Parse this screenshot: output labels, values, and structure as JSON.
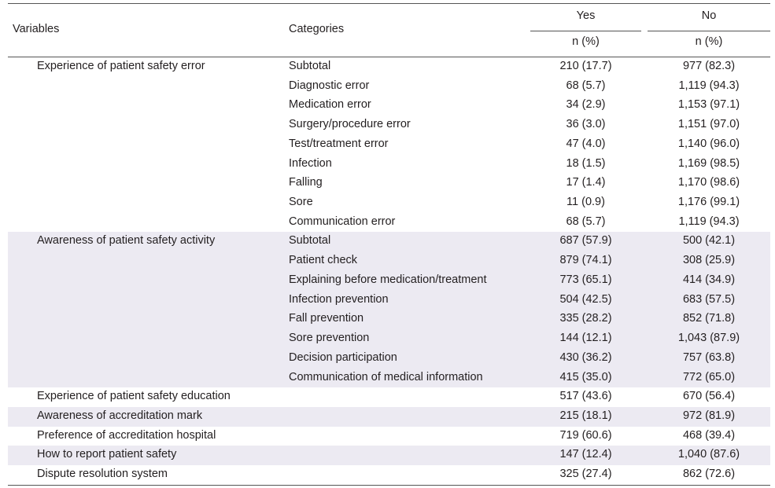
{
  "header": {
    "variables": "Variables",
    "categories": "Categories",
    "yes": "Yes",
    "no": "No",
    "yes_unit": "n (%)",
    "no_unit": "n (%)"
  },
  "rows": [
    {
      "variable": "Experience of patient safety error",
      "category": "Subtotal",
      "yes": "210 (17.7)",
      "no": "977 (82.3)"
    },
    {
      "variable": "",
      "category": "Diagnostic error",
      "yes": "68 (5.7)",
      "no": "1,119 (94.3)"
    },
    {
      "variable": "",
      "category": "Medication error",
      "yes": "34 (2.9)",
      "no": "1,153 (97.1)"
    },
    {
      "variable": "",
      "category": "Surgery/procedure error",
      "yes": "36 (3.0)",
      "no": "1,151 (97.0)"
    },
    {
      "variable": "",
      "category": "Test/treatment error",
      "yes": "47 (4.0)",
      "no": "1,140 (96.0)"
    },
    {
      "variable": "",
      "category": "Infection",
      "yes": "18 (1.5)",
      "no": "1,169 (98.5)"
    },
    {
      "variable": "",
      "category": "Falling",
      "yes": "17 (1.4)",
      "no": "1,170 (98.6)"
    },
    {
      "variable": "",
      "category": "Sore",
      "yes": "11 (0.9)",
      "no": "1,176 (99.1)"
    },
    {
      "variable": "",
      "category": "Communication error",
      "yes": "68 (5.7)",
      "no": "1,119 (94.3)"
    },
    {
      "variable": "Awareness of patient safety activity",
      "category": "Subtotal",
      "yes": "687 (57.9)",
      "no": "500 (42.1)"
    },
    {
      "variable": "",
      "category": "Patient check",
      "yes": "879 (74.1)",
      "no": "308 (25.9)"
    },
    {
      "variable": "",
      "category": "Explaining before medication/treatment",
      "yes": "773 (65.1)",
      "no": "414 (34.9)"
    },
    {
      "variable": "",
      "category": "Infection prevention",
      "yes": "504 (42.5)",
      "no": "683 (57.5)"
    },
    {
      "variable": "",
      "category": "Fall prevention",
      "yes": "335 (28.2)",
      "no": "852 (71.8)"
    },
    {
      "variable": "",
      "category": "Sore prevention",
      "yes": "144 (12.1)",
      "no": "1,043 (87.9)"
    },
    {
      "variable": "",
      "category": "Decision participation",
      "yes": "430 (36.2)",
      "no": "757 (63.8)"
    },
    {
      "variable": "",
      "category": "Communication of medical information",
      "yes": "415 (35.0)",
      "no": "772 (65.0)"
    },
    {
      "variable": "Experience of patient safety education",
      "category": "",
      "yes": "517 (43.6)",
      "no": "670 (56.4)"
    },
    {
      "variable": "Awareness of accreditation mark",
      "category": "",
      "yes": "215 (18.1)",
      "no": "972 (81.9)"
    },
    {
      "variable": "Preference of accreditation hospital",
      "category": "",
      "yes": "719 (60.6)",
      "no": "468 (39.4)"
    },
    {
      "variable": "How to report patient safety",
      "category": "",
      "yes": "147 (12.4)",
      "no": "1,040 (87.6)"
    },
    {
      "variable": "Dispute resolution system",
      "category": "",
      "yes": "325 (27.4)",
      "no": "862 (72.6)"
    }
  ]
}
